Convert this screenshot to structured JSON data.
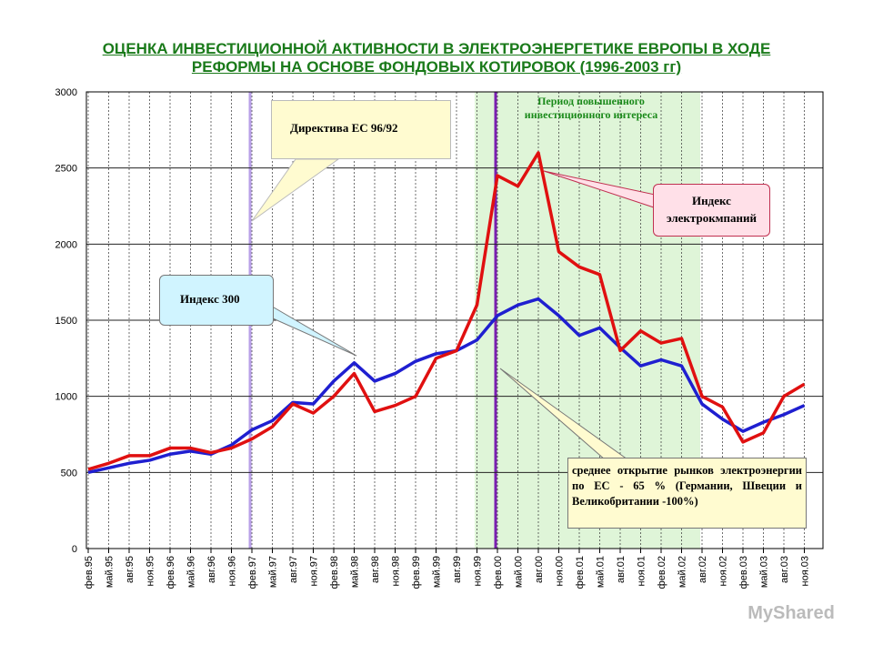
{
  "chart_data": {
    "type": "line",
    "title": [
      "ОЦЕНКА ИНВЕСТИЦИОННОЙ АКТИВНОСТИ В ЭЛЕКТРОЭНЕРГЕТИКЕ ЕВРОПЫ В ХОДЕ",
      "РЕФОРМЫ НА ОСНОВЕ ФОНДОВЫХ КОТИРОВОК (1996-2003 гг)"
    ],
    "categories": [
      "фев.95",
      "май.95",
      "авг.95",
      "ноя.95",
      "фев.96",
      "май.96",
      "авг.96",
      "ноя.96",
      "фев.97",
      "май.97",
      "авг.97",
      "ноя.97",
      "фев.98",
      "май.98",
      "авг.98",
      "ноя.98",
      "фев.99",
      "май.99",
      "авг.99",
      "ноя.99",
      "фев.00",
      "май.00",
      "авг.00",
      "ноя.00",
      "фев.01",
      "май.01",
      "авг.01",
      "ноя.01",
      "фев.02",
      "май.02",
      "авг.02",
      "ноя.02",
      "фев.03",
      "май.03",
      "авг.03",
      "ноя.03"
    ],
    "series": [
      {
        "name": "Индекс 300",
        "color": "#1f1fd0",
        "values": [
          500,
          530,
          560,
          580,
          620,
          640,
          620,
          680,
          780,
          840,
          960,
          950,
          1100,
          1220,
          1100,
          1150,
          1230,
          1280,
          1300,
          1370,
          1530,
          1600,
          1640,
          1530,
          1400,
          1450,
          1320,
          1200,
          1240,
          1200,
          950,
          850,
          770,
          830,
          880,
          940
        ]
      },
      {
        "name": "Индекс электрокмпаний",
        "color": "#e01010",
        "values": [
          520,
          560,
          610,
          610,
          660,
          660,
          630,
          660,
          720,
          800,
          950,
          890,
          1000,
          1150,
          900,
          940,
          1000,
          1250,
          1300,
          1600,
          2450,
          2380,
          2600,
          1950,
          1850,
          1800,
          1300,
          1430,
          1350,
          1380,
          1000,
          930,
          700,
          760,
          1000,
          1080
        ]
      }
    ],
    "ylim": [
      0,
      3000
    ],
    "yticks": [
      0,
      500,
      1000,
      1500,
      2000,
      2500,
      3000
    ],
    "grid": true,
    "annotations": {
      "directive": "Директива ЕС 96/92",
      "period": "Период повышенного инвестиционного интереса",
      "market": "среднее открытие рынков электроэнергии по ЕС - 65 % (Германии, Швеции и Великобритании -100%)"
    },
    "watermark": "MyShared"
  }
}
